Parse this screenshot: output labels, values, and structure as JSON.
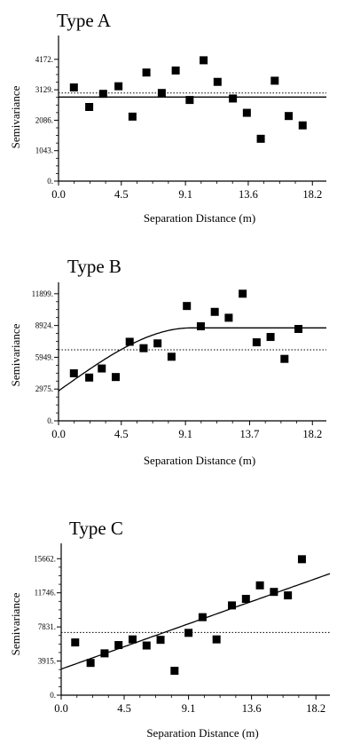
{
  "chart_data": [
    {
      "type": "scatter",
      "title": "Type A",
      "xlabel": "Separation Distance (m)",
      "ylabel": "Semivariance",
      "xticks": [
        "0.0",
        "4.5",
        "9.1",
        "13.6",
        "18.2"
      ],
      "yticks": [
        "0.",
        "1043.",
        "2086.",
        "3129.",
        "4172."
      ],
      "xlim": [
        0,
        19.2
      ],
      "ylim": [
        0,
        4380
      ],
      "x": [
        1.1,
        2.2,
        3.2,
        4.3,
        5.3,
        6.3,
        7.4,
        8.4,
        9.4,
        10.4,
        11.4,
        12.5,
        13.5,
        14.5,
        15.5,
        16.5,
        17.5
      ],
      "y": [
        3210,
        2540,
        2990,
        3250,
        2210,
        3720,
        3020,
        3790,
        2780,
        4140,
        3400,
        2830,
        2340,
        1450,
        3440,
        2230,
        1910
      ],
      "fit": {
        "type": "horizontal",
        "y": 2880
      },
      "reference": {
        "type": "dotted",
        "y": 3020
      }
    },
    {
      "type": "scatter",
      "title": "Type B",
      "xlabel": "Separation Distance (m)",
      "ylabel": "Semivariance",
      "xticks": [
        "0.0",
        "4.5",
        "9.1",
        "13.7",
        "18.2"
      ],
      "yticks": [
        "0.",
        "2975.",
        "5949.",
        "8924.",
        "11899."
      ],
      "xlim": [
        0,
        19.2
      ],
      "ylim": [
        0,
        12300
      ],
      "x": [
        1.1,
        2.2,
        3.1,
        4.1,
        5.1,
        6.1,
        7.1,
        8.1,
        9.2,
        10.2,
        11.2,
        12.2,
        13.2,
        14.2,
        15.2,
        16.2,
        17.2
      ],
      "y": [
        4450,
        4050,
        4900,
        4100,
        7400,
        6800,
        7250,
        6000,
        10750,
        8850,
        10200,
        9650,
        11900,
        7350,
        7850,
        5800,
        8600
      ],
      "fit": {
        "type": "spherical",
        "nugget": 2800,
        "sill": 8700,
        "range": 9.5
      },
      "reference": {
        "type": "dotted",
        "y": 6650
      }
    },
    {
      "type": "scatter",
      "title": "Type C",
      "xlabel": "Separation Distance (m)",
      "ylabel": "Semivariance",
      "xticks": [
        "0.0",
        "4.5",
        "9.1",
        "13.6",
        "18.2"
      ],
      "yticks": [
        "0.",
        "3915.",
        "7831.",
        "11746.",
        "15662."
      ],
      "xlim": [
        0,
        19.2
      ],
      "ylim": [
        0,
        16300
      ],
      "x": [
        1.0,
        2.1,
        3.1,
        4.1,
        5.1,
        6.1,
        7.1,
        8.1,
        9.1,
        10.1,
        11.1,
        12.2,
        13.2,
        14.2,
        15.2,
        16.2,
        17.2
      ],
      "y": [
        6050,
        3700,
        4800,
        5750,
        6400,
        5700,
        6350,
        2800,
        7150,
        8950,
        6400,
        10300,
        11050,
        12600,
        11850,
        11450,
        15600
      ],
      "fit": {
        "type": "linear",
        "intercept": 3000,
        "slope": 570
      },
      "reference": {
        "type": "dotted",
        "y": 7200
      }
    }
  ]
}
